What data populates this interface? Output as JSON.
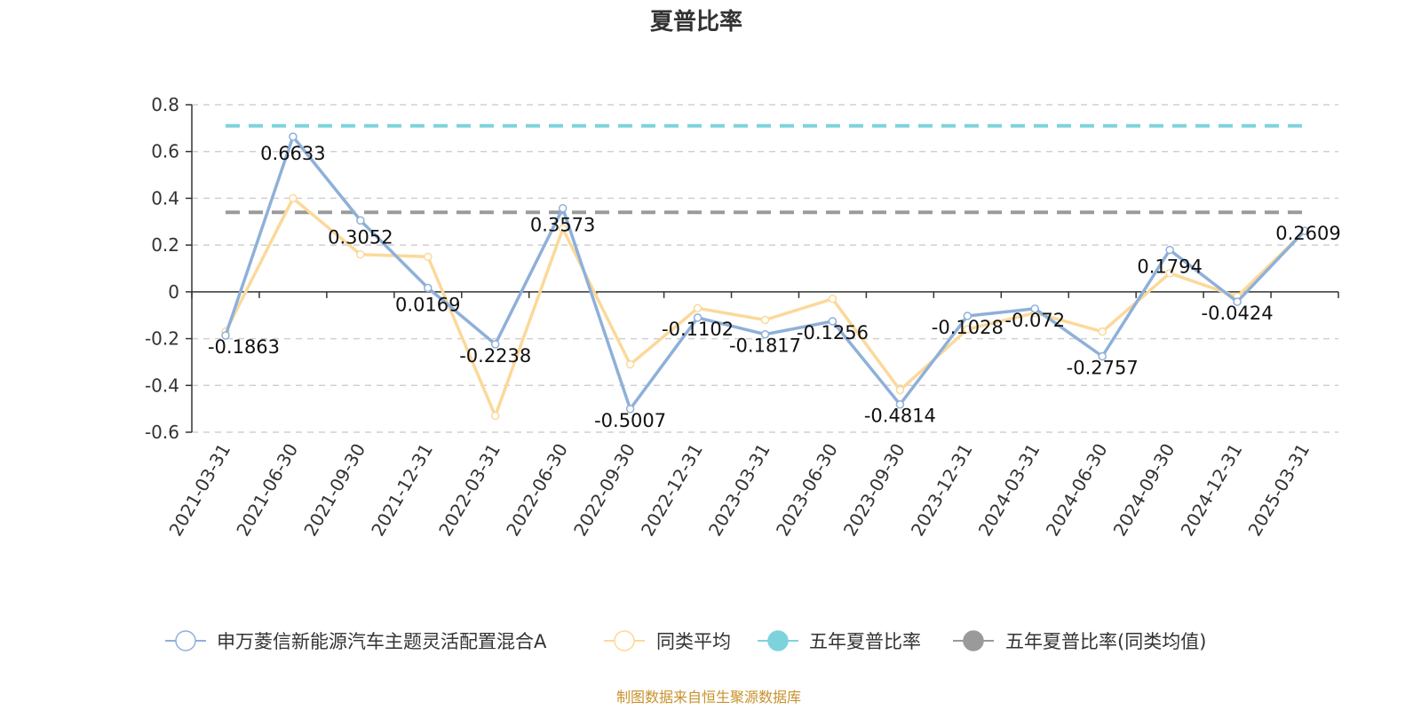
{
  "chart_data": {
    "type": "line",
    "title": "夏普比率",
    "x": [
      "2021-03-31",
      "2021-06-30",
      "2021-09-30",
      "2021-12-31",
      "2022-03-31",
      "2022-06-30",
      "2022-09-30",
      "2022-12-31",
      "2023-03-31",
      "2023-06-30",
      "2023-09-30",
      "2023-12-31",
      "2024-03-31",
      "2024-06-30",
      "2024-09-30",
      "2024-12-31",
      "2025-03-31"
    ],
    "ylim": [
      -0.6,
      0.8
    ],
    "yticks": [
      0.8,
      0.6,
      0.4,
      0.2,
      0,
      -0.2,
      -0.4,
      -0.6
    ],
    "ytick_labels": [
      "0.8",
      "0.6",
      "0.4",
      "0.2",
      "0",
      "-0.2",
      "-0.4",
      "-0.6"
    ],
    "grid": true,
    "legend_position": "bottom",
    "series": [
      {
        "name": "申万菱信新能源汽车主题灵活配置混合A",
        "color": "#8eb0d9",
        "values": [
          -0.1863,
          0.6633,
          0.3052,
          0.0169,
          -0.2238,
          0.3573,
          -0.5007,
          -0.1102,
          -0.1817,
          -0.1256,
          -0.4814,
          -0.1028,
          -0.072,
          -0.2757,
          0.1794,
          -0.0424,
          0.2609
        ],
        "labels": [
          "-0.1863",
          "0.6633",
          "0.3052",
          "0.0169",
          "-0.2238",
          "0.3573",
          "-0.5007",
          "-0.1102",
          "-0.1817",
          "-0.1256",
          "-0.4814",
          "-0.1028",
          "-0.072",
          "-0.2757",
          "0.1794",
          "-0.0424",
          "0.2609"
        ]
      },
      {
        "name": "同类平均",
        "color": "#fbd99a",
        "values": [
          -0.17,
          0.4,
          0.16,
          0.15,
          -0.53,
          0.27,
          -0.31,
          -0.07,
          -0.12,
          -0.03,
          -0.42,
          -0.16,
          -0.09,
          -0.17,
          0.08,
          -0.02,
          0.26
        ]
      },
      {
        "name": "五年夏普比率",
        "color": "#7dd3dc",
        "type": "hline",
        "value": 0.71
      },
      {
        "name": "五年夏普比率(同类均值)",
        "color": "#9a9a9a",
        "type": "hline",
        "value": 0.34
      }
    ],
    "source": "制图数据来自恒生聚源数据库"
  }
}
